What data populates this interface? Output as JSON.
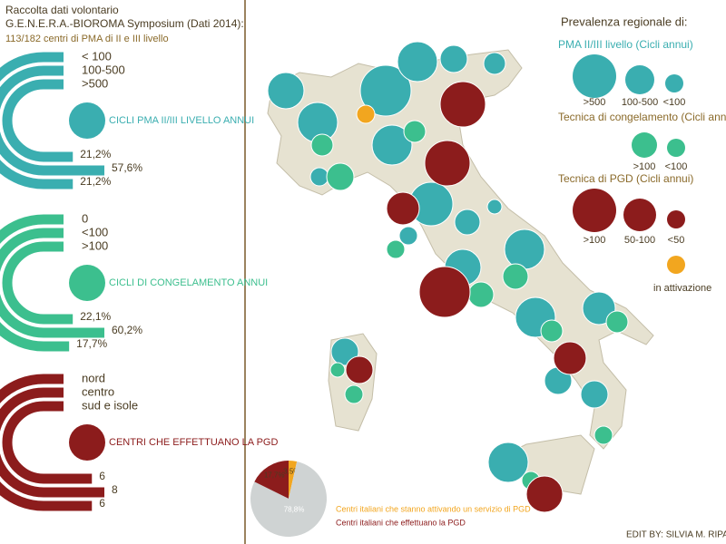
{
  "header": {
    "title": "Raccolta dati volontario",
    "subtitle": "G.E.N.E.R.A.-BIOROMA Symposium (Dati 2014):",
    "note": "113/182 centri di PMA di II e III livello"
  },
  "chart_data": [
    {
      "type": "arc",
      "title": "CICLI PMA II/III LIVELLO ANNUI",
      "color": "#3aaeb0",
      "categories": [
        "< 100",
        "100-500",
        ">500"
      ],
      "values": [
        21.2,
        57.6,
        21.2
      ],
      "value_labels": [
        "21,2%",
        "57,6%",
        "21,2%"
      ]
    },
    {
      "type": "arc",
      "title": "CICLI DI CONGELAMENTO ANNUI",
      "color": "#3cbf8e",
      "categories": [
        "0",
        "<100",
        ">100"
      ],
      "values": [
        17.7,
        60.2,
        22.1
      ],
      "value_labels": [
        "17,7%",
        "60,2%",
        "22,1%"
      ]
    },
    {
      "type": "arc",
      "title": "CENTRI CHE EFFETTUANO LA PGD",
      "color": "#8c1c1c",
      "categories": [
        "nord",
        "centro",
        "sud e isole"
      ],
      "values": [
        6,
        8,
        6
      ]
    },
    {
      "type": "pie",
      "categories": [
        "Centri italiani che effettuano la PGD",
        "Centri italiani che stanno attivando un servizio di PGD",
        null
      ],
      "values": [
        17.7,
        3.5,
        78.8
      ],
      "value_labels": [
        "17,7%",
        "3,5%",
        "78,8%"
      ],
      "colors": [
        "#8c1c1c",
        "#f2a61f",
        "#cfd3d3"
      ]
    }
  ],
  "legend": {
    "title": "Prevalenza regionale di:",
    "pma": {
      "title": "PMA II/III livello (Cicli annui)",
      "labels": [
        ">500",
        "100-500",
        "<100"
      ]
    },
    "freeze": {
      "title": "Tecnica di congelamento (Cicli annui)",
      "labels": [
        ">100",
        "<100"
      ]
    },
    "pgd": {
      "title": "Tecnica di PGD (Cicli annui)",
      "labels": [
        ">100",
        "50-100",
        "<50"
      ]
    },
    "activation": "in attivazione"
  },
  "footer": "EDIT BY: SILVIA M. RIPA"
}
